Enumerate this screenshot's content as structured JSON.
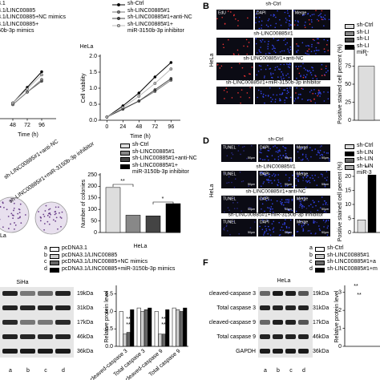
{
  "chart_data": [
    {
      "type": "line",
      "xlabel": "Time (h)",
      "x": [
        48,
        72,
        96
      ],
      "xlim": [
        0,
        120
      ],
      "xticks": [
        48,
        72,
        96
      ],
      "ylim": [
        0,
        2
      ],
      "series": [
        {
          "name": "3.1",
          "color": "#000000",
          "values": [
            0.5,
            1.0,
            1.5
          ]
        },
        {
          "name": "3.1/LINC00885",
          "color": "#555555",
          "values": [
            0.45,
            0.85,
            1.2
          ]
        },
        {
          "name": "3.1/LINC00885+NC mimics",
          "color": "#888888",
          "values": [
            0.45,
            0.85,
            1.25
          ]
        },
        {
          "name": "3.1/LINC00885+\n50b-3p mimics",
          "color": "#bbbbbb",
          "values": [
            0.5,
            0.95,
            1.4
          ]
        }
      ]
    },
    {
      "type": "line",
      "title": "HeLa",
      "xlabel": "Time (h)",
      "ylabel": "Cell viability",
      "x": [
        0,
        24,
        48,
        72,
        96
      ],
      "xlim": [
        -10,
        110
      ],
      "xticks": [
        0,
        24,
        48,
        72,
        96
      ],
      "ylim": [
        0,
        2
      ],
      "yticks": [
        {
          "value": 0,
          "label": "0.0"
        },
        0.5,
        {
          "value": 1,
          "label": "1.0"
        },
        1.5,
        {
          "value": 2,
          "label": "2.0"
        }
      ],
      "series": [
        {
          "name": "sh-Ctrl",
          "color": "#000000",
          "values": [
            0.1,
            0.45,
            0.85,
            1.35,
            1.8
          ]
        },
        {
          "name": "sh-LINC00885#1",
          "color": "#777777",
          "values": [
            0.1,
            0.35,
            0.6,
            0.9,
            1.25
          ]
        },
        {
          "name": "sh-LINC00885#1+anti-NC",
          "color": "#444444",
          "values": [
            0.1,
            0.35,
            0.6,
            0.95,
            1.3
          ]
        },
        {
          "name": "sh-LINC00885#1+\nmiR-3150b-3p inhibitor",
          "color": "#bbbbbb",
          "values": [
            0.1,
            0.4,
            0.75,
            1.15,
            1.6
          ]
        }
      ]
    },
    {
      "type": "bar",
      "ylabel": "Positive stained cell percent (%)",
      "ylim": [
        0,
        100
      ],
      "yticks": [
        0,
        25,
        50,
        75
      ],
      "annotations": [
        "*"
      ],
      "series": [
        {
          "name": "sh-Ctrl",
          "color": "#dddddd",
          "values": [
            75
          ]
        },
        {
          "name": "sh-LI",
          "color": "#888888",
          "values": []
        },
        {
          "name": "sh-LI",
          "color": "#444444",
          "values": []
        },
        {
          "name": "sh-LI\nmiR-",
          "color": "#000000",
          "values": []
        }
      ]
    },
    {
      "type": "bar",
      "xlabel": "HeLa",
      "ylabel": "Number of colonies",
      "ylim": [
        0,
        250
      ],
      "yticks": [
        0,
        50,
        100,
        150,
        200,
        250
      ],
      "annotations": [
        "**",
        "*"
      ],
      "series": [
        {
          "name": "sh-Ctrl",
          "color": "#dddddd",
          "values": [
            195
          ]
        },
        {
          "name": "sh-LINC00885#1",
          "color": "#888888",
          "values": [
            75
          ]
        },
        {
          "name": "sh-LINC00885#1+anti-NC",
          "color": "#444444",
          "values": [
            72
          ]
        },
        {
          "name": "sh-LINC00885#1+\nmiR-3150b-3p inhibitor",
          "color": "#000000",
          "values": [
            125
          ]
        }
      ]
    },
    {
      "type": "bar",
      "ylabel": "Positive stained cell percent (%)",
      "ylim": [
        0,
        22
      ],
      "yticks": [
        0,
        5,
        10,
        15,
        20
      ],
      "annotations": [
        "**"
      ],
      "series": [
        {
          "name": "sh-Ctrl",
          "color": "#dddddd",
          "values": [
            4.5
          ]
        },
        {
          "name": "sh-LIN",
          "color": "#000000",
          "values": [
            20.5
          ]
        },
        {
          "name": "sh-LIN",
          "color": "#666666",
          "values": []
        },
        {
          "name": "sh-LIN\nmiR-3",
          "color": "#aaaaaa",
          "values": []
        }
      ]
    },
    {
      "type": "bar",
      "ylabel": "Relative protein level",
      "ylim": [
        0,
        1.7
      ],
      "yticks": [
        {
          "value": 0,
          "label": "0.0"
        },
        0.5,
        {
          "value": 1,
          "label": "1.0"
        },
        1.5
      ],
      "categories": [
        "cleaved-caspase 3",
        "Total caspase 3",
        "cleaved-caspase 9",
        "Total caspase 9"
      ],
      "annotations": [
        "**",
        "**",
        "**",
        "**"
      ],
      "series": [
        {
          "key": "a",
          "name": "pcDNA3.1",
          "color": "#ffffff",
          "values": [
            1.0,
            1.1,
            1.0,
            1.1
          ]
        },
        {
          "key": "b",
          "name": "pcDNA3.1/LINC00885",
          "color": "#cccccc",
          "values": [
            0.35,
            1.0,
            0.35,
            1.05
          ]
        },
        {
          "key": "c",
          "name": "pcDNA3.1/LINC00885+NC mimics",
          "color": "#666666",
          "values": [
            0.4,
            1.05,
            0.35,
            1.0
          ]
        },
        {
          "key": "d",
          "name": "pcDNA3.1/LINC00885+miR-3150b-3p mimics",
          "color": "#000000",
          "values": [
            1.05,
            1.1,
            1.05,
            1.1
          ]
        }
      ]
    },
    {
      "type": "bar",
      "ylabel": "Relative protein level",
      "ylim": [
        0,
        3.3
      ],
      "yticks": [
        0,
        1,
        2,
        3
      ],
      "annotations": [
        "**",
        "**"
      ],
      "series": [
        {
          "key": "a",
          "name": "sh-Ctrl",
          "color": "#ffffff",
          "values": [
            1.0
          ]
        },
        {
          "key": "b",
          "name": "sh-LINC00885#1",
          "color": "#cccccc",
          "values": [
            2.6
          ]
        },
        {
          "key": "c",
          "name": "sh-LINC00885#1+a",
          "color": "#666666",
          "values": [
            2.5
          ]
        },
        {
          "key": "d",
          "name": "sh-LINC00885#1+m",
          "color": "#000000",
          "values": [
            1.3
          ]
        }
      ]
    }
  ],
  "edu": {
    "label": "B",
    "cell_line": "HeLa",
    "channels": [
      "EdU",
      "DAPI",
      "Merge"
    ],
    "rows": [
      "sh-Ctrl",
      "sh-LINC00885#1",
      "sh-LINC00885#1+anti-NC",
      "sh-LINC00885#1+miR-3150b-3p inhibitor"
    ]
  },
  "tunel": {
    "label": "D",
    "cell_line": "HeLa",
    "channels": [
      "TUNEL",
      "DAPI",
      "Merge"
    ],
    "scale": "50μm",
    "rows": [
      "sh-Ctrl",
      "sh-LINC00885#1",
      "sh-LINC00885#1+anti-NC",
      "sh-LINC00885#1+miR-3150b-3p inhibitor"
    ]
  },
  "colony": {
    "cell_line": "La",
    "rows": [
      "sh-LINC00885#1+anti-NC",
      "sh-LINC00885#1+miR-3150b-3p inhibitor"
    ]
  },
  "blot_e": {
    "cell_line": "SiHa",
    "sizes": [
      "19kDa",
      "31kDa",
      "17kDa",
      "46kDa",
      "36kDa"
    ],
    "lanes": [
      "a",
      "b",
      "c",
      "d"
    ]
  },
  "blot_f": {
    "label": "F",
    "cell_line": "HeLa",
    "proteins": [
      "cleaved-caspase 3",
      "Total caspase 3",
      "cleaved-caspase 9",
      "Total caspase 9",
      "GAPDH"
    ],
    "sizes": [
      "19kDa",
      "31kDa",
      "17kDa",
      "46kDa",
      "36kDa"
    ],
    "lanes": [
      "a",
      "b",
      "c",
      "d"
    ]
  }
}
